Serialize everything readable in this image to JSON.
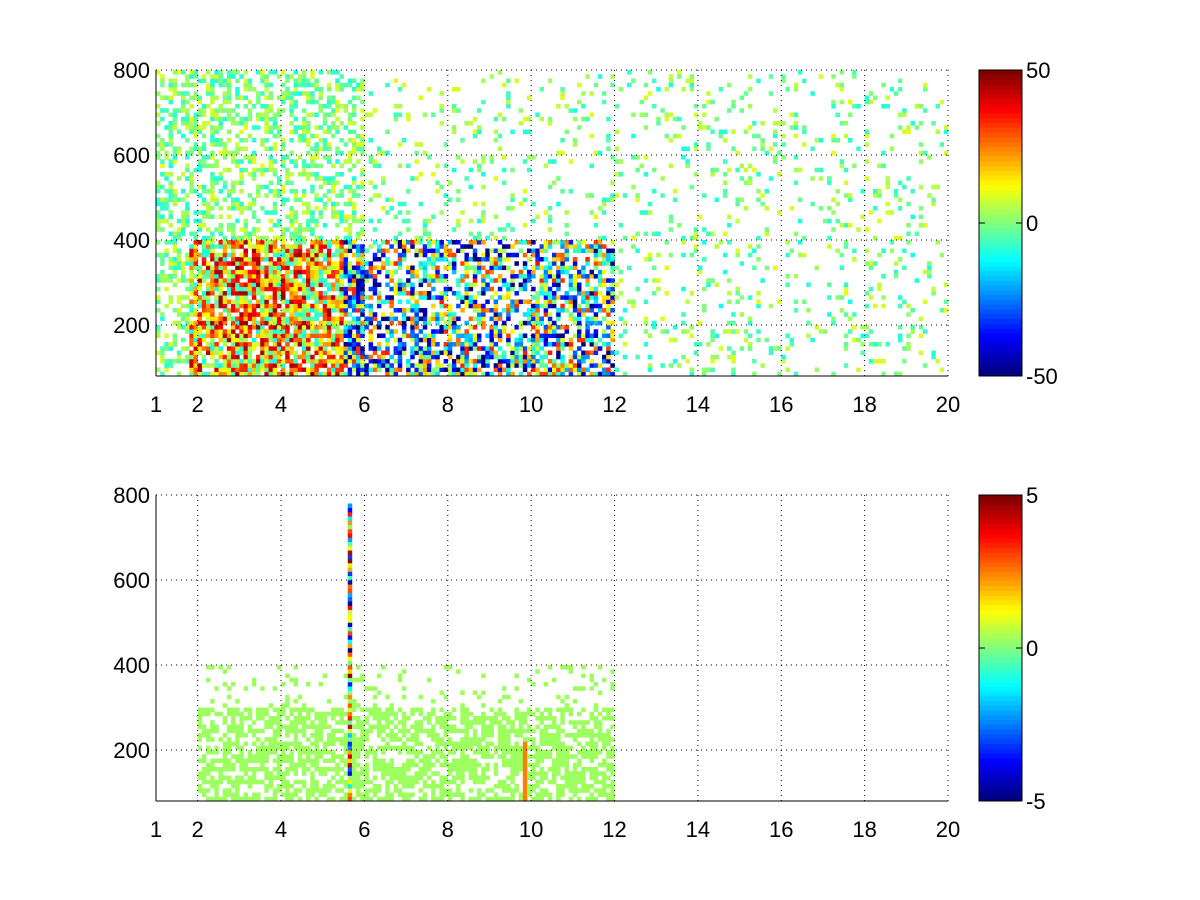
{
  "chart_data": [
    {
      "type": "heatmap",
      "title": "",
      "xlabel": "",
      "ylabel": "",
      "xlim": [
        1,
        20
      ],
      "ylim": [
        80,
        800
      ],
      "x_ticks": [
        1,
        2,
        4,
        6,
        8,
        10,
        12,
        14,
        16,
        18,
        20
      ],
      "y_ticks": [
        200,
        400,
        600,
        800
      ],
      "grid": true,
      "colormap": "jet",
      "clim": [
        -50,
        50
      ],
      "colorbar_ticks": [
        50,
        0,
        -50
      ],
      "description_regions": [
        {
          "x_range": [
            2,
            6
          ],
          "y_range": [
            80,
            400
          ],
          "value_range": [
            -50,
            50
          ]
        },
        {
          "x_range": [
            6,
            12
          ],
          "y_range": [
            80,
            400
          ],
          "value_range": [
            -50,
            40
          ]
        },
        {
          "x_range": [
            1,
            20
          ],
          "y_range": [
            80,
            800
          ],
          "value_range": [
            -10,
            10
          ]
        }
      ]
    },
    {
      "type": "heatmap",
      "title": "",
      "xlabel": "",
      "ylabel": "",
      "xlim": [
        1,
        20
      ],
      "ylim": [
        80,
        800
      ],
      "x_ticks": [
        1,
        2,
        4,
        6,
        8,
        10,
        12,
        14,
        16,
        18,
        20
      ],
      "y_ticks": [
        200,
        400,
        600,
        800
      ],
      "grid": true,
      "colormap": "jet",
      "clim": [
        -5,
        5
      ],
      "colorbar_ticks": [
        5,
        0,
        -5
      ],
      "description_regions": [
        {
          "x_range": [
            2,
            12
          ],
          "y_range": [
            80,
            400
          ],
          "value_range": [
            0,
            0.5
          ]
        },
        {
          "x_range": [
            5.6,
            5.7
          ],
          "y_range": [
            80,
            780
          ],
          "value_range": [
            -5,
            5
          ]
        },
        {
          "x_range": [
            9.8,
            9.9
          ],
          "y_range": [
            80,
            220
          ],
          "value_range": [
            2,
            3
          ]
        }
      ]
    }
  ]
}
